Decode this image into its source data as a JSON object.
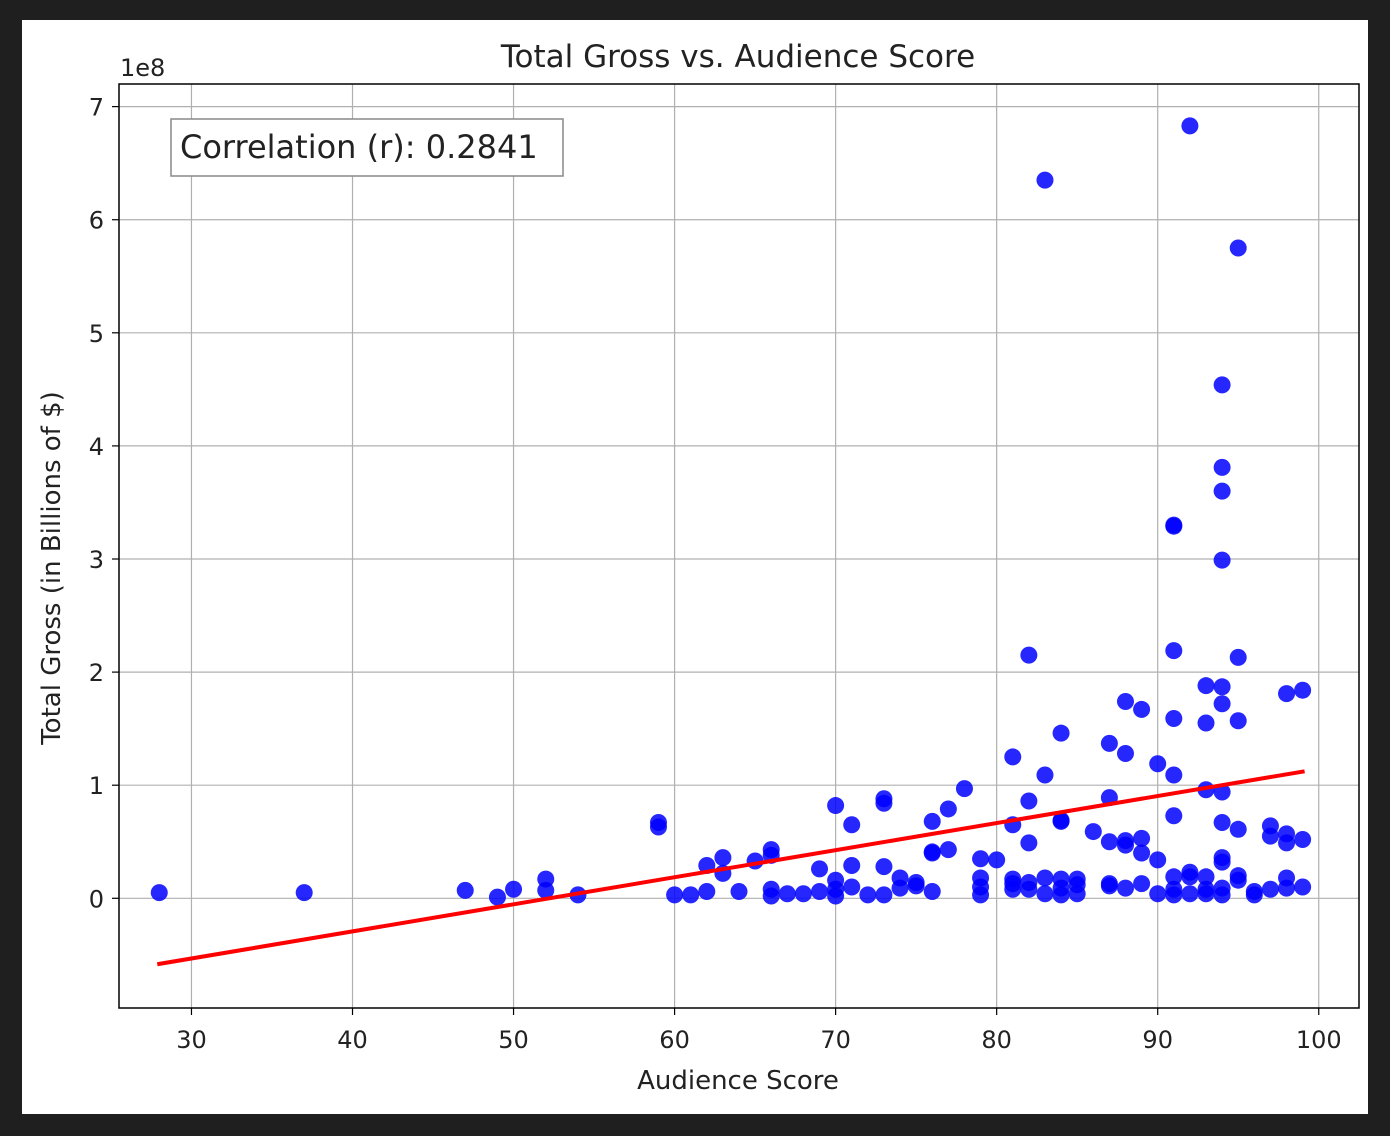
{
  "chart_data": {
    "type": "scatter",
    "title": "Total Gross vs. Audience Score",
    "xlabel": "Audience Score",
    "ylabel": "Total Gross (in Billions of $)",
    "y_offset_label": "1e8",
    "annotation": "Correlation (r): 0.2841",
    "xlim": [
      25.5,
      102.5
    ],
    "ylim": [
      -0.97,
      7.2
    ],
    "x_ticks": [
      30,
      40,
      50,
      60,
      70,
      80,
      90,
      100
    ],
    "y_ticks": [
      0,
      1,
      2,
      3,
      4,
      5,
      6,
      7
    ],
    "grid": true,
    "colors": {
      "points": "#0000ff",
      "trend": "#ff0000"
    },
    "trendline": {
      "x": [
        28,
        99
      ],
      "y": [
        -0.58,
        1.12
      ]
    },
    "series": [
      {
        "points": [
          [
            28,
            0.05
          ],
          [
            37,
            0.05
          ],
          [
            47,
            0.07
          ],
          [
            49,
            0.01
          ],
          [
            50,
            0.08
          ],
          [
            52,
            0.17
          ],
          [
            52,
            0.07
          ],
          [
            54,
            0.03
          ],
          [
            59,
            0.67
          ],
          [
            59,
            0.63
          ],
          [
            60,
            0.03
          ],
          [
            61,
            0.03
          ],
          [
            62,
            0.29
          ],
          [
            62,
            0.06
          ],
          [
            63,
            0.36
          ],
          [
            63,
            0.22
          ],
          [
            64,
            0.06
          ],
          [
            65,
            0.33
          ],
          [
            66,
            0.43
          ],
          [
            66,
            0.38
          ],
          [
            66,
            0.08
          ],
          [
            66,
            0.02
          ],
          [
            67,
            0.04
          ],
          [
            68,
            0.04
          ],
          [
            69,
            0.26
          ],
          [
            69,
            0.06
          ],
          [
            70,
            0.82
          ],
          [
            70,
            0.16
          ],
          [
            70,
            0.08
          ],
          [
            70,
            0.02
          ],
          [
            71,
            0.65
          ],
          [
            71,
            0.29
          ],
          [
            71,
            0.1
          ],
          [
            72,
            0.03
          ],
          [
            73,
            0.88
          ],
          [
            73,
            0.84
          ],
          [
            73,
            0.28
          ],
          [
            73,
            0.03
          ],
          [
            74,
            0.18
          ],
          [
            74,
            0.09
          ],
          [
            75,
            0.14
          ],
          [
            75,
            0.11
          ],
          [
            76,
            0.68
          ],
          [
            76,
            0.41
          ],
          [
            76,
            0.4
          ],
          [
            76,
            0.06
          ],
          [
            77,
            0.79
          ],
          [
            77,
            0.43
          ],
          [
            78,
            0.97
          ],
          [
            79,
            0.35
          ],
          [
            79,
            0.18
          ],
          [
            79,
            0.1
          ],
          [
            79,
            0.03
          ],
          [
            80,
            0.34
          ],
          [
            81,
            1.25
          ],
          [
            81,
            0.65
          ],
          [
            81,
            0.17
          ],
          [
            81,
            0.13
          ],
          [
            81,
            0.08
          ],
          [
            82,
            2.15
          ],
          [
            82,
            0.86
          ],
          [
            82,
            0.49
          ],
          [
            82,
            0.14
          ],
          [
            82,
            0.08
          ],
          [
            83,
            6.35
          ],
          [
            83,
            1.09
          ],
          [
            83,
            0.18
          ],
          [
            83,
            0.04
          ],
          [
            84,
            1.46
          ],
          [
            84,
            0.69
          ],
          [
            84,
            0.68
          ],
          [
            84,
            0.17
          ],
          [
            84,
            0.09
          ],
          [
            84,
            0.03
          ],
          [
            85,
            0.17
          ],
          [
            85,
            0.12
          ],
          [
            85,
            0.04
          ],
          [
            86,
            0.59
          ],
          [
            87,
            1.37
          ],
          [
            87,
            0.89
          ],
          [
            87,
            0.5
          ],
          [
            87,
            0.13
          ],
          [
            87,
            0.11
          ],
          [
            88,
            1.74
          ],
          [
            88,
            1.28
          ],
          [
            88,
            0.51
          ],
          [
            88,
            0.47
          ],
          [
            88,
            0.09
          ],
          [
            89,
            1.67
          ],
          [
            89,
            0.53
          ],
          [
            89,
            0.4
          ],
          [
            89,
            0.13
          ],
          [
            90,
            1.19
          ],
          [
            90,
            0.34
          ],
          [
            90,
            0.04
          ],
          [
            91,
            3.3
          ],
          [
            91,
            3.29
          ],
          [
            91,
            2.19
          ],
          [
            91,
            1.59
          ],
          [
            91,
            1.09
          ],
          [
            91,
            0.73
          ],
          [
            91,
            0.19
          ],
          [
            91,
            0.08
          ],
          [
            91,
            0.03
          ],
          [
            92,
            6.83
          ],
          [
            92,
            0.23
          ],
          [
            92,
            0.19
          ],
          [
            92,
            0.04
          ],
          [
            93,
            1.88
          ],
          [
            93,
            1.55
          ],
          [
            93,
            0.96
          ],
          [
            93,
            0.19
          ],
          [
            93,
            0.08
          ],
          [
            93,
            0.04
          ],
          [
            94,
            4.54
          ],
          [
            94,
            3.81
          ],
          [
            94,
            3.6
          ],
          [
            94,
            2.99
          ],
          [
            94,
            1.87
          ],
          [
            94,
            1.72
          ],
          [
            94,
            0.94
          ],
          [
            94,
            0.67
          ],
          [
            94,
            0.36
          ],
          [
            94,
            0.32
          ],
          [
            94,
            0.09
          ],
          [
            94,
            0.03
          ],
          [
            95,
            5.75
          ],
          [
            95,
            2.13
          ],
          [
            95,
            1.57
          ],
          [
            95,
            0.61
          ],
          [
            95,
            0.2
          ],
          [
            95,
            0.16
          ],
          [
            96,
            0.06
          ],
          [
            96,
            0.03
          ],
          [
            97,
            0.64
          ],
          [
            97,
            0.55
          ],
          [
            97,
            0.08
          ],
          [
            98,
            1.81
          ],
          [
            98,
            0.57
          ],
          [
            98,
            0.49
          ],
          [
            98,
            0.18
          ],
          [
            98,
            0.09
          ],
          [
            99,
            1.84
          ],
          [
            99,
            0.52
          ],
          [
            99,
            0.1
          ]
        ]
      }
    ]
  }
}
